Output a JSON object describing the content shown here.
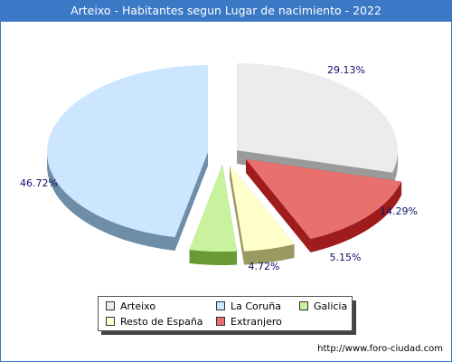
{
  "header": {
    "title": "Arteixo - Habitantes segun Lugar de nacimiento - 2022"
  },
  "footer": {
    "url": "http://www.foro-ciudad.com"
  },
  "chart_data": {
    "type": "pie",
    "title": "Arteixo - Habitantes segun Lugar de nacimiento - 2022",
    "legend_position": "bottom",
    "slices": [
      {
        "name": "Arteixo",
        "value": 29.13,
        "label": "29.13%",
        "color": "#ececec",
        "side": "#9a9a9a"
      },
      {
        "name": "Extranjero",
        "value": 14.29,
        "label": "14.29%",
        "color": "#e8716e",
        "side": "#9e1c1c"
      },
      {
        "name": "Resto de España",
        "value": 5.15,
        "label": "5.15%",
        "color": "#ffffcc",
        "side": "#9a9a60"
      },
      {
        "name": "Galicia",
        "value": 4.72,
        "label": "4.72%",
        "color": "#c9f29f",
        "side": "#6a9a35"
      },
      {
        "name": "La Coruña",
        "value": 46.72,
        "label": "46.72%",
        "color": "#cce6ff",
        "side": "#6e8ea8"
      }
    ],
    "legend": [
      {
        "name": "Arteixo",
        "color": "#ececec"
      },
      {
        "name": "La Coruña",
        "color": "#cce6ff"
      },
      {
        "name": "Galicia",
        "color": "#c9f29f"
      },
      {
        "name": "Resto de España",
        "color": "#ffffcc"
      },
      {
        "name": "Extranjero",
        "color": "#e8716e"
      }
    ]
  }
}
